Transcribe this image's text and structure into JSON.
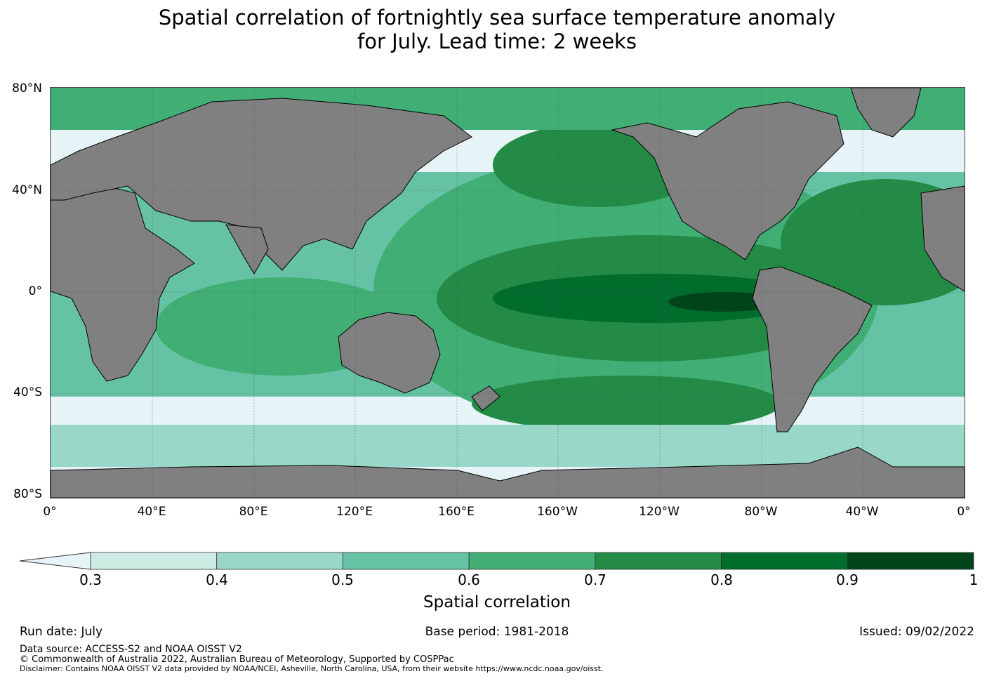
{
  "title_line1": "Spatial correlation of fortnightly sea surface temperature anomaly",
  "title_line2": "for July. Lead time: 2 weeks",
  "lat_ticks": [
    "80°N",
    "40°N",
    "0°",
    "40°S",
    "80°S"
  ],
  "lon_ticks": [
    "0°",
    "40°E",
    "80°E",
    "120°E",
    "160°E",
    "160°W",
    "120°W",
    "80°W",
    "40°W",
    "0°"
  ],
  "colorbar": {
    "title": "Spatial correlation",
    "labels": [
      "0.3",
      "0.4",
      "0.5",
      "0.6",
      "0.7",
      "0.8",
      "0.9",
      "1"
    ],
    "colors": [
      "#ccece4",
      "#99d8c9",
      "#66c2a4",
      "#41ae76",
      "#238b45",
      "#006d2c",
      "#00441b"
    ],
    "under_color": "#e6f4f8"
  },
  "land_color": "#808080",
  "footer": {
    "run_date": "Run date: July",
    "base_period": "Base period: 1981-2018",
    "issued": "Issued: 09/02/2022",
    "data_source": "Data source: ACCESS-S2 and NOAA OISST V2",
    "copyright": "© Commonwealth of Australia 2022, Australian Bureau of Meteorology, Supported by COSPPac",
    "disclaimer": "Disclaimer: Contains NOAA OISST V2 data provided by NOAA/NCEI, Asheville, North Carolina, USA, from their website https://www.ncdc.noaa.gov/oisst."
  }
}
